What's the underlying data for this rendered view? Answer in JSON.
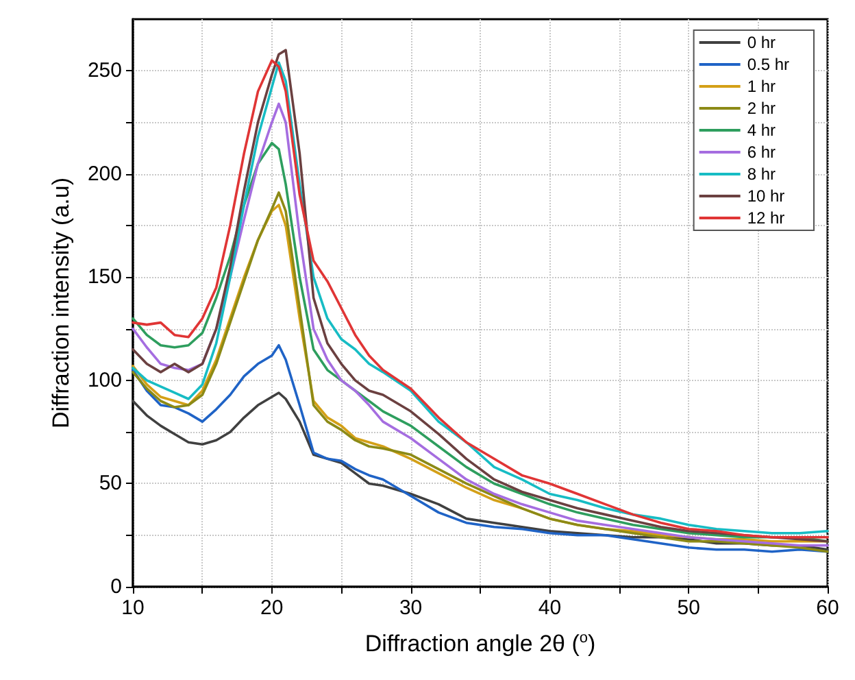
{
  "chart_data": {
    "type": "line",
    "xlabel": "Diffraction angle 2θ ($^{o}$)",
    "ylabel": "Diffraction intensity (a.u)",
    "x": [
      10,
      11,
      12,
      13,
      14,
      15,
      16,
      17,
      18,
      19,
      20,
      20.5,
      21,
      22,
      23,
      24,
      25,
      26,
      27,
      28,
      30,
      32,
      34,
      36,
      38,
      40,
      42,
      44,
      46,
      48,
      50,
      52,
      54,
      56,
      58,
      60
    ],
    "series": [
      {
        "name": "0 hr",
        "color": "#404040",
        "values": [
          90,
          83,
          78,
          74,
          70,
          69,
          71,
          75,
          82,
          88,
          92,
          94,
          91,
          80,
          64,
          62,
          60,
          55,
          50,
          49,
          45,
          40,
          33,
          31,
          29,
          27,
          26,
          25,
          24,
          24,
          23,
          21,
          21,
          20,
          20,
          18
        ]
      },
      {
        "name": "0.5 hr",
        "color": "#1f63c6",
        "values": [
          105,
          95,
          88,
          87,
          84,
          80,
          86,
          93,
          102,
          108,
          112,
          117,
          110,
          88,
          65,
          62,
          61,
          57,
          54,
          52,
          44,
          36,
          31,
          29,
          28,
          26,
          25,
          25,
          23,
          21,
          19,
          18,
          18,
          17,
          18,
          17
        ]
      },
      {
        "name": "1 hr",
        "color": "#d4a017",
        "values": [
          107,
          98,
          92,
          90,
          88,
          95,
          110,
          130,
          150,
          168,
          182,
          185,
          175,
          130,
          90,
          82,
          78,
          72,
          70,
          68,
          62,
          55,
          48,
          42,
          38,
          33,
          30,
          28,
          27,
          25,
          24,
          23,
          23,
          22,
          22,
          22
        ]
      },
      {
        "name": "2 hr",
        "color": "#8c8a16",
        "values": [
          104,
          96,
          90,
          87,
          88,
          93,
          108,
          128,
          148,
          168,
          183,
          191,
          182,
          135,
          88,
          80,
          76,
          71,
          68,
          67,
          64,
          57,
          50,
          44,
          38,
          33,
          30,
          28,
          26,
          24,
          22,
          22,
          21,
          20,
          19,
          17
        ]
      },
      {
        "name": "4 hr",
        "color": "#2e9e5e",
        "values": [
          130,
          122,
          117,
          116,
          117,
          123,
          140,
          160,
          185,
          205,
          215,
          212,
          195,
          150,
          115,
          105,
          100,
          95,
          90,
          85,
          78,
          68,
          58,
          50,
          45,
          40,
          36,
          33,
          30,
          28,
          26,
          25,
          24,
          24,
          24,
          22
        ]
      },
      {
        "name": "6 hr",
        "color": "#a56de0",
        "values": [
          125,
          116,
          108,
          106,
          105,
          108,
          125,
          150,
          178,
          205,
          225,
          234,
          225,
          170,
          125,
          110,
          100,
          95,
          88,
          80,
          72,
          62,
          52,
          45,
          40,
          36,
          32,
          30,
          28,
          26,
          24,
          23,
          22,
          21,
          20,
          20
        ]
      },
      {
        "name": "8 hr",
        "color": "#17bcc4",
        "values": [
          106,
          100,
          97,
          94,
          91,
          98,
          118,
          150,
          185,
          218,
          242,
          254,
          245,
          195,
          150,
          130,
          120,
          115,
          108,
          104,
          95,
          80,
          70,
          58,
          52,
          45,
          42,
          38,
          35,
          33,
          30,
          28,
          27,
          26,
          26,
          27
        ]
      },
      {
        "name": "10 hr",
        "color": "#6b4040",
        "values": [
          115,
          108,
          104,
          108,
          104,
          108,
          125,
          155,
          192,
          225,
          248,
          258,
          260,
          210,
          140,
          118,
          108,
          100,
          95,
          93,
          85,
          74,
          62,
          52,
          46,
          42,
          38,
          35,
          32,
          29,
          27,
          26,
          25,
          24,
          23,
          22
        ]
      },
      {
        "name": "12 hr",
        "color": "#e03535",
        "values": [
          128,
          127,
          128,
          122,
          121,
          130,
          145,
          175,
          210,
          240,
          255,
          252,
          240,
          190,
          158,
          148,
          135,
          122,
          112,
          105,
          96,
          82,
          70,
          62,
          54,
          50,
          45,
          40,
          35,
          31,
          28,
          27,
          25,
          24,
          24,
          24
        ]
      }
    ],
    "xlim": [
      10,
      60
    ],
    "ylim": [
      0,
      275
    ],
    "xticks": [
      10,
      {
        "value": 15,
        "label": null
      },
      20,
      {
        "value": 25,
        "label": null
      },
      30,
      {
        "value": 35,
        "label": null
      },
      40,
      {
        "value": 45,
        "label": null
      },
      50,
      {
        "value": 55,
        "label": null
      },
      60
    ],
    "yticks": [
      0,
      {
        "value": 25,
        "label": null
      },
      50,
      {
        "value": 75,
        "label": null
      },
      100,
      {
        "value": 125,
        "label": null
      },
      150,
      {
        "value": 175,
        "label": null
      },
      200,
      {
        "value": 225,
        "label": null
      },
      250
    ],
    "grid": true,
    "legend": "top right",
    "marker": "none",
    "line_style": "solid"
  }
}
